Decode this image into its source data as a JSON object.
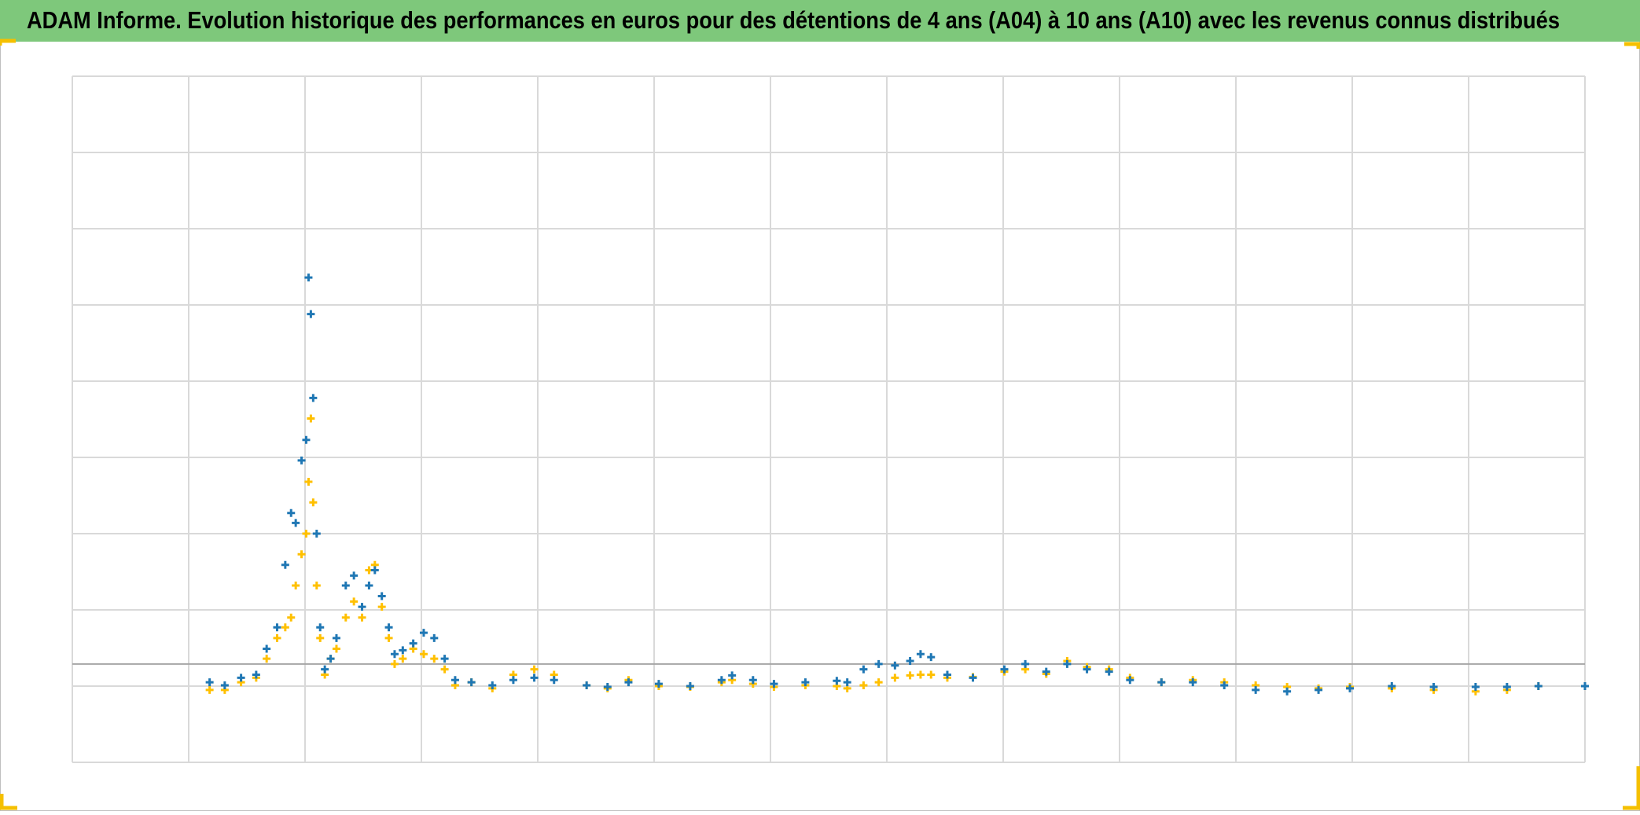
{
  "chart_data": {
    "type": "scatter",
    "title": "ADAM Informe. Evolution historique des performances en euros pour des détentions de 4 ans (A04) à 10 ans (A10) avec les revenus connus distribués",
    "xlim": [
      0,
      13
    ],
    "xticks": [
      0,
      1,
      2,
      3,
      4,
      5,
      6,
      7,
      8,
      9,
      10,
      11,
      12,
      13
    ],
    "ylim": [
      0,
      9
    ],
    "yticks": [
      0,
      1,
      2,
      3,
      4,
      5,
      6,
      7,
      8,
      9
    ],
    "axis_line": 1.29,
    "grid": true,
    "x": [
      1.18,
      1.31,
      1.45,
      1.58,
      1.67,
      1.76,
      1.83,
      1.88,
      1.92,
      1.97,
      2.01,
      2.03,
      2.05,
      2.07,
      2.1,
      2.13,
      2.17,
      2.22,
      2.27,
      2.35,
      2.42,
      2.49,
      2.55,
      2.6,
      2.66,
      2.72,
      2.77,
      2.84,
      2.93,
      3.02,
      3.11,
      3.2,
      3.29,
      3.43,
      3.61,
      3.79,
      3.97,
      4.14,
      4.42,
      4.6,
      4.78,
      5.04,
      5.31,
      5.58,
      5.67,
      5.85,
      6.03,
      6.3,
      6.57,
      6.66,
      6.8,
      6.93,
      7.07,
      7.2,
      7.29,
      7.38,
      7.52,
      7.74,
      8.01,
      8.19,
      8.37,
      8.55,
      8.72,
      8.91,
      9.09,
      9.36,
      9.63,
      9.9,
      10.17,
      10.44,
      10.71,
      10.98,
      11.34,
      11.7,
      12.06,
      12.33,
      12.6,
      13.0
    ],
    "series": [
      {
        "color": "#1f77b4",
        "values": [
          1.05,
          1.01,
          1.11,
          1.15,
          1.49,
          1.77,
          2.59,
          3.27,
          3.14,
          3.96,
          4.23,
          6.36,
          5.88,
          4.78,
          3.0,
          1.77,
          1.22,
          1.36,
          1.63,
          2.32,
          2.45,
          2.04,
          2.32,
          2.52,
          2.18,
          1.77,
          1.42,
          1.47,
          1.56,
          1.7,
          1.63,
          1.36,
          1.08,
          1.05,
          1.01,
          1.08,
          1.11,
          1.08,
          1.01,
          0.99,
          1.05,
          1.03,
          1.0,
          1.08,
          1.14,
          1.08,
          1.03,
          1.05,
          1.07,
          1.05,
          1.22,
          1.29,
          1.27,
          1.33,
          1.42,
          1.38,
          1.15,
          1.11,
          1.22,
          1.29,
          1.19,
          1.29,
          1.22,
          1.19,
          1.08,
          1.05,
          1.05,
          1.01,
          0.95,
          0.93,
          0.95,
          0.97,
          1.0,
          0.99,
          0.99,
          0.99,
          1.0,
          1.0
        ]
      },
      {
        "color": "#ffc000",
        "values": [
          0.95,
          0.95,
          1.05,
          1.11,
          1.36,
          1.63,
          1.77,
          1.9,
          2.32,
          2.73,
          3.0,
          3.68,
          4.51,
          3.41,
          2.32,
          1.63,
          1.15,
          1.36,
          1.49,
          1.9,
          2.11,
          1.9,
          2.52,
          2.59,
          2.04,
          1.63,
          1.29,
          1.36,
          1.49,
          1.42,
          1.36,
          1.22,
          1.01,
          1.05,
          0.97,
          1.15,
          1.22,
          1.15,
          1.01,
          0.97,
          1.08,
          1.0,
          0.99,
          1.05,
          1.08,
          1.03,
          0.99,
          1.01,
          1.0,
          0.97,
          1.01,
          1.05,
          1.11,
          1.14,
          1.15,
          1.15,
          1.11,
          1.12,
          1.19,
          1.22,
          1.16,
          1.33,
          1.25,
          1.22,
          1.11,
          1.05,
          1.08,
          1.05,
          1.01,
          0.99,
          0.97,
          0.99,
          0.97,
          0.95,
          0.93,
          0.95,
          1.0,
          1.0
        ]
      }
    ]
  }
}
